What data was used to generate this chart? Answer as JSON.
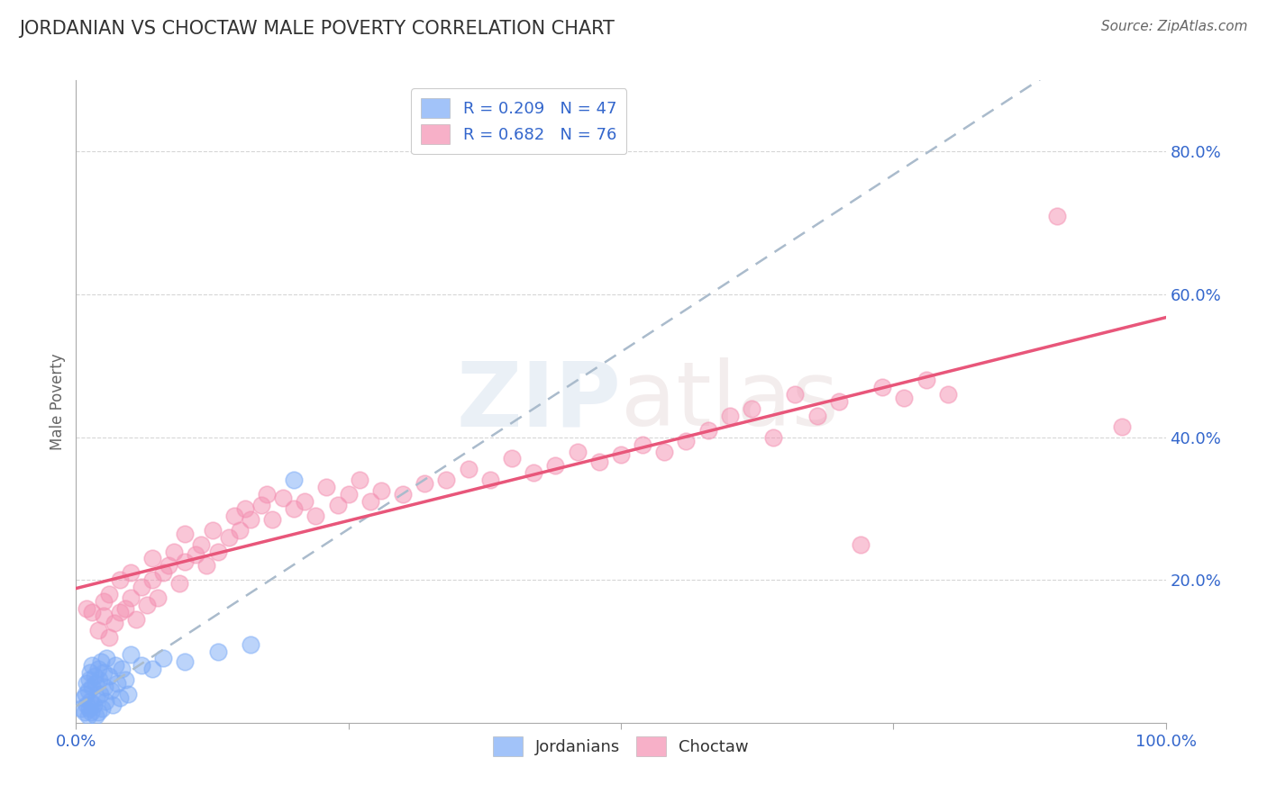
{
  "title": "JORDANIAN VS CHOCTAW MALE POVERTY CORRELATION CHART",
  "source": "Source: ZipAtlas.com",
  "ylabel": "Male Poverty",
  "watermark": "ZIPatlas",
  "xlim": [
    0.0,
    1.0
  ],
  "ylim": [
    0.0,
    0.9
  ],
  "x_ticks": [
    0.0,
    0.25,
    0.5,
    0.75,
    1.0
  ],
  "x_tick_labels": [
    "0.0%",
    "",
    "",
    "",
    "100.0%"
  ],
  "y_ticks": [
    0.2,
    0.4,
    0.6,
    0.8
  ],
  "y_tick_labels": [
    "20.0%",
    "40.0%",
    "60.0%",
    "80.0%"
  ],
  "legend_entries": [
    {
      "label": "R = 0.209   N = 47",
      "color": "#a8c4f0"
    },
    {
      "label": "R = 0.682   N = 76",
      "color": "#f4a0b0"
    }
  ],
  "jordanian_color": "#7baaf7",
  "choctaw_color": "#f48fb1",
  "trend_jordanian_color": "#aabbcc",
  "trend_choctaw_color": "#e8567a",
  "background_color": "#ffffff",
  "grid_color": "#cccccc",
  "title_color": "#333333",
  "axis_label_color": "#666666",
  "source_color": "#666666",
  "jordanian_x": [
    0.005,
    0.007,
    0.008,
    0.009,
    0.01,
    0.01,
    0.011,
    0.011,
    0.012,
    0.012,
    0.013,
    0.013,
    0.014,
    0.015,
    0.015,
    0.016,
    0.017,
    0.018,
    0.018,
    0.019,
    0.02,
    0.02,
    0.021,
    0.022,
    0.023,
    0.024,
    0.025,
    0.026,
    0.027,
    0.028,
    0.03,
    0.032,
    0.034,
    0.036,
    0.038,
    0.04,
    0.042,
    0.045,
    0.048,
    0.05,
    0.06,
    0.07,
    0.08,
    0.1,
    0.13,
    0.16,
    0.2
  ],
  "jordanian_y": [
    0.02,
    0.035,
    0.015,
    0.04,
    0.025,
    0.055,
    0.01,
    0.045,
    0.02,
    0.06,
    0.03,
    0.07,
    0.015,
    0.05,
    0.08,
    0.025,
    0.065,
    0.01,
    0.055,
    0.035,
    0.075,
    0.015,
    0.06,
    0.04,
    0.085,
    0.02,
    0.07,
    0.05,
    0.03,
    0.09,
    0.065,
    0.045,
    0.025,
    0.08,
    0.055,
    0.035,
    0.075,
    0.06,
    0.04,
    0.095,
    0.08,
    0.075,
    0.09,
    0.085,
    0.1,
    0.11,
    0.34
  ],
  "choctaw_x": [
    0.01,
    0.015,
    0.02,
    0.025,
    0.025,
    0.03,
    0.03,
    0.035,
    0.04,
    0.04,
    0.045,
    0.05,
    0.05,
    0.055,
    0.06,
    0.065,
    0.07,
    0.07,
    0.075,
    0.08,
    0.085,
    0.09,
    0.095,
    0.1,
    0.1,
    0.11,
    0.115,
    0.12,
    0.125,
    0.13,
    0.14,
    0.145,
    0.15,
    0.155,
    0.16,
    0.17,
    0.175,
    0.18,
    0.19,
    0.2,
    0.21,
    0.22,
    0.23,
    0.24,
    0.25,
    0.26,
    0.27,
    0.28,
    0.3,
    0.32,
    0.34,
    0.36,
    0.38,
    0.4,
    0.42,
    0.44,
    0.46,
    0.48,
    0.5,
    0.52,
    0.54,
    0.56,
    0.58,
    0.6,
    0.62,
    0.64,
    0.66,
    0.68,
    0.7,
    0.72,
    0.74,
    0.76,
    0.78,
    0.8,
    0.9,
    0.96
  ],
  "choctaw_y": [
    0.16,
    0.155,
    0.13,
    0.15,
    0.17,
    0.12,
    0.18,
    0.14,
    0.155,
    0.2,
    0.16,
    0.175,
    0.21,
    0.145,
    0.19,
    0.165,
    0.2,
    0.23,
    0.175,
    0.21,
    0.22,
    0.24,
    0.195,
    0.225,
    0.265,
    0.235,
    0.25,
    0.22,
    0.27,
    0.24,
    0.26,
    0.29,
    0.27,
    0.3,
    0.285,
    0.305,
    0.32,
    0.285,
    0.315,
    0.3,
    0.31,
    0.29,
    0.33,
    0.305,
    0.32,
    0.34,
    0.31,
    0.325,
    0.32,
    0.335,
    0.34,
    0.355,
    0.34,
    0.37,
    0.35,
    0.36,
    0.38,
    0.365,
    0.375,
    0.39,
    0.38,
    0.395,
    0.41,
    0.43,
    0.44,
    0.4,
    0.46,
    0.43,
    0.45,
    0.25,
    0.47,
    0.455,
    0.48,
    0.46,
    0.71,
    0.415
  ]
}
